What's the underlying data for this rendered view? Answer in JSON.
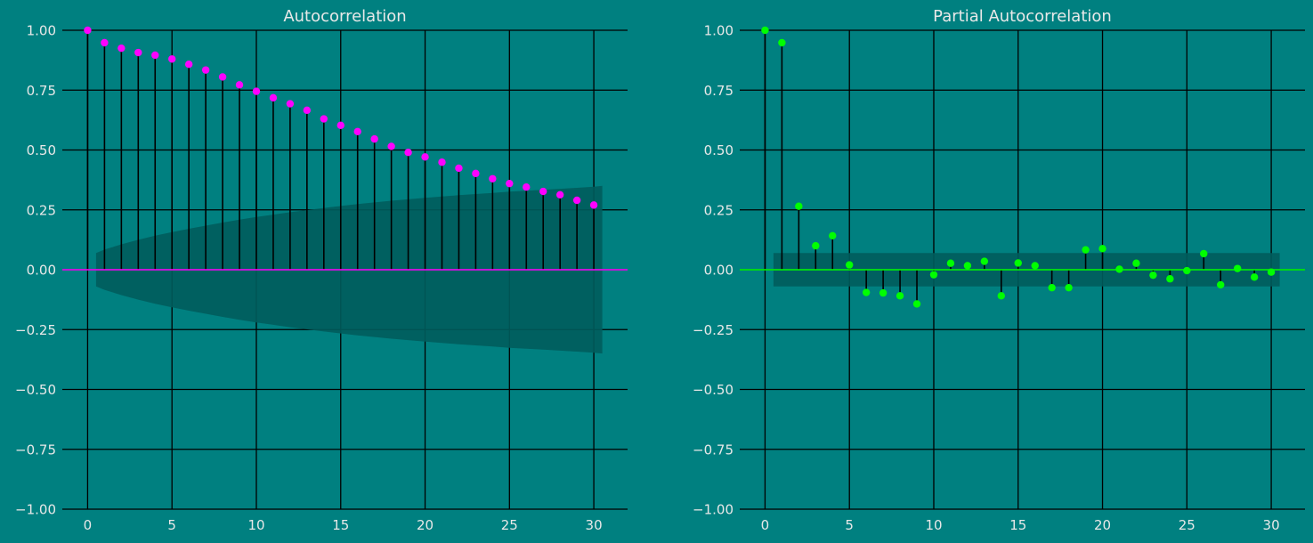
{
  "colors": {
    "background": "#008080",
    "band": "#005c5c",
    "grid": "#000000",
    "stem": "#000000",
    "text": "#e8e8e8"
  },
  "chart_data": [
    {
      "type": "stem",
      "title": "Autocorrelation",
      "xlabel": "",
      "ylabel": "",
      "xlim": [
        -1.5,
        32
      ],
      "ylim": [
        -1.0,
        1.0
      ],
      "xticks": [
        0,
        5,
        10,
        15,
        20,
        25,
        30
      ],
      "yticks": [
        -1.0,
        -0.75,
        -0.5,
        -0.25,
        0.0,
        0.25,
        0.5,
        0.75,
        1.0
      ],
      "ytick_labels": [
        "−1.00",
        "−0.75",
        "−0.50",
        "−0.25",
        "0.00",
        "0.25",
        "0.50",
        "0.75",
        "1.00"
      ],
      "xtick_labels": [
        "0",
        "5",
        "10",
        "15",
        "20",
        "25",
        "30"
      ],
      "grid": true,
      "marker_color": "#ff00ff",
      "baseline_color": "#ff00ff",
      "lags": [
        0,
        1,
        2,
        3,
        4,
        5,
        6,
        7,
        8,
        9,
        10,
        11,
        12,
        13,
        14,
        15,
        16,
        17,
        18,
        19,
        20,
        21,
        22,
        23,
        24,
        25,
        26,
        27,
        28,
        29,
        30
      ],
      "values": [
        1.0,
        0.948,
        0.925,
        0.907,
        0.896,
        0.88,
        0.858,
        0.834,
        0.805,
        0.772,
        0.745,
        0.718,
        0.693,
        0.666,
        0.63,
        0.603,
        0.577,
        0.546,
        0.515,
        0.49,
        0.471,
        0.449,
        0.424,
        0.402,
        0.38,
        0.36,
        0.345,
        0.327,
        0.313,
        0.29,
        0.27
      ],
      "confidence_band": {
        "x_start": 0.5,
        "x_end": 30.5,
        "lags": [
          0.5,
          1,
          2,
          3,
          4,
          5,
          6,
          7,
          8,
          9,
          10,
          11,
          12,
          13,
          14,
          15,
          16,
          17,
          18,
          19,
          20,
          21,
          22,
          23,
          24,
          25,
          26,
          27,
          28,
          29,
          30,
          30.5
        ],
        "upper": [
          0.07,
          0.084,
          0.106,
          0.125,
          0.142,
          0.157,
          0.171,
          0.184,
          0.197,
          0.209,
          0.22,
          0.23,
          0.24,
          0.249,
          0.258,
          0.266,
          0.274,
          0.281,
          0.288,
          0.294,
          0.3,
          0.306,
          0.311,
          0.316,
          0.321,
          0.326,
          0.33,
          0.334,
          0.338,
          0.342,
          0.347,
          0.35
        ]
      }
    },
    {
      "type": "stem",
      "title": "Partial Autocorrelation",
      "xlabel": "",
      "ylabel": "",
      "xlim": [
        -1.5,
        32
      ],
      "ylim": [
        -1.0,
        1.0
      ],
      "xticks": [
        0,
        5,
        10,
        15,
        20,
        25,
        30
      ],
      "yticks": [
        -1.0,
        -0.75,
        -0.5,
        -0.25,
        0.0,
        0.25,
        0.5,
        0.75,
        1.0
      ],
      "ytick_labels": [
        "−1.00",
        "−0.75",
        "−0.50",
        "−0.25",
        "0.00",
        "0.25",
        "0.50",
        "0.75",
        "1.00"
      ],
      "xtick_labels": [
        "0",
        "5",
        "10",
        "15",
        "20",
        "25",
        "30"
      ],
      "grid": true,
      "marker_color": "#00ff00",
      "baseline_color": "#00ff00",
      "lags": [
        0,
        1,
        2,
        3,
        4,
        5,
        6,
        7,
        8,
        9,
        10,
        11,
        12,
        13,
        14,
        15,
        16,
        17,
        18,
        19,
        20,
        21,
        22,
        23,
        24,
        25,
        26,
        27,
        28,
        29,
        30
      ],
      "values": [
        1.0,
        0.948,
        0.265,
        0.1,
        0.142,
        0.02,
        -0.095,
        -0.097,
        -0.109,
        -0.143,
        -0.021,
        0.027,
        0.017,
        0.035,
        -0.109,
        0.028,
        0.017,
        -0.075,
        -0.075,
        0.083,
        0.088,
        0.002,
        0.027,
        -0.023,
        -0.038,
        -0.004,
        0.067,
        -0.063,
        0.005,
        -0.031,
        -0.01
      ],
      "confidence_band": {
        "x_start": 0.5,
        "x_end": 30.5,
        "lags": [
          0.5,
          30.5
        ],
        "upper": [
          0.07,
          0.07
        ]
      }
    }
  ]
}
